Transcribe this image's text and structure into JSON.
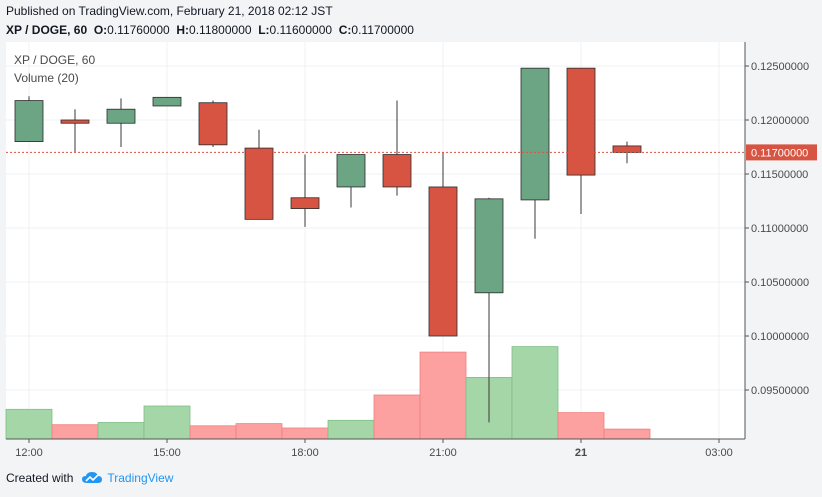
{
  "header": {
    "published": "Published on TradingView.com, February 21, 2018 02:12 JST",
    "symbol": "XP / DOGE, 60",
    "o_label": "O:",
    "o_value": "0.11760000",
    "h_label": "H:",
    "h_value": "0.11800000",
    "l_label": "L:",
    "l_value": "0.11600000",
    "c_label": "C:",
    "c_value": "0.11700000"
  },
  "legend": {
    "symbol": "XP / DOGE, 60",
    "volume": "Volume (20)"
  },
  "footer": {
    "created_with": "Created with",
    "brand": "TradingView"
  },
  "colors": {
    "up": "#6ba583",
    "down": "#d75442",
    "vol_up": "#a5d6a7",
    "vol_down": "#fca0a0",
    "last_price_tag": "#d75442"
  },
  "chart_data": {
    "type": "candlestick",
    "price_axis": {
      "ticks": [
        "0.12500000",
        "0.12000000",
        "0.11500000",
        "0.11000000",
        "0.10500000",
        "0.10000000",
        "0.09500000"
      ],
      "tick_values": [
        0.125,
        0.12,
        0.115,
        0.11,
        0.105,
        0.1,
        0.095
      ]
    },
    "last_price": 0.117,
    "last_price_label": "0.11700000",
    "time_axis": {
      "labels": [
        "12:00",
        "15:00",
        "18:00",
        "21:00",
        "21",
        "03:00"
      ],
      "label_slots": [
        0.5,
        3.5,
        6.5,
        9.5,
        12.5,
        15.5
      ]
    },
    "candles": [
      {
        "o": 0.118,
        "h": 0.1222,
        "l": 0.118,
        "c": 0.1218
      },
      {
        "o": 0.12,
        "h": 0.121,
        "l": 0.117,
        "c": 0.1197
      },
      {
        "o": 0.1197,
        "h": 0.122,
        "l": 0.1175,
        "c": 0.121
      },
      {
        "o": 0.1213,
        "h": 0.1221,
        "l": 0.1213,
        "c": 0.1221
      },
      {
        "o": 0.1216,
        "h": 0.1218,
        "l": 0.1175,
        "c": 0.1177
      },
      {
        "o": 0.1174,
        "h": 0.1191,
        "l": 0.1108,
        "c": 0.1108
      },
      {
        "o": 0.1128,
        "h": 0.1168,
        "l": 0.1101,
        "c": 0.1118
      },
      {
        "o": 0.1138,
        "h": 0.1168,
        "l": 0.1119,
        "c": 0.1168
      },
      {
        "o": 0.1168,
        "h": 0.1218,
        "l": 0.113,
        "c": 0.1138
      },
      {
        "o": 0.1138,
        "h": 0.117,
        "l": 0.1,
        "c": 0.1
      },
      {
        "o": 0.104,
        "h": 0.1128,
        "l": 0.092,
        "c": 0.1127
      },
      {
        "o": 0.1126,
        "h": 0.1248,
        "l": 0.109,
        "c": 0.1248
      },
      {
        "o": 0.1248,
        "h": 0.1248,
        "l": 0.1113,
        "c": 0.1149
      },
      {
        "o": 0.1176,
        "h": 0.118,
        "l": 0.116,
        "c": 0.117
      }
    ],
    "volume_rel": [
      0.27,
      0.13,
      0.15,
      0.3,
      0.12,
      0.14,
      0.1,
      0.17,
      0.4,
      0.79,
      0.56,
      0.84,
      0.24,
      0.09
    ]
  }
}
